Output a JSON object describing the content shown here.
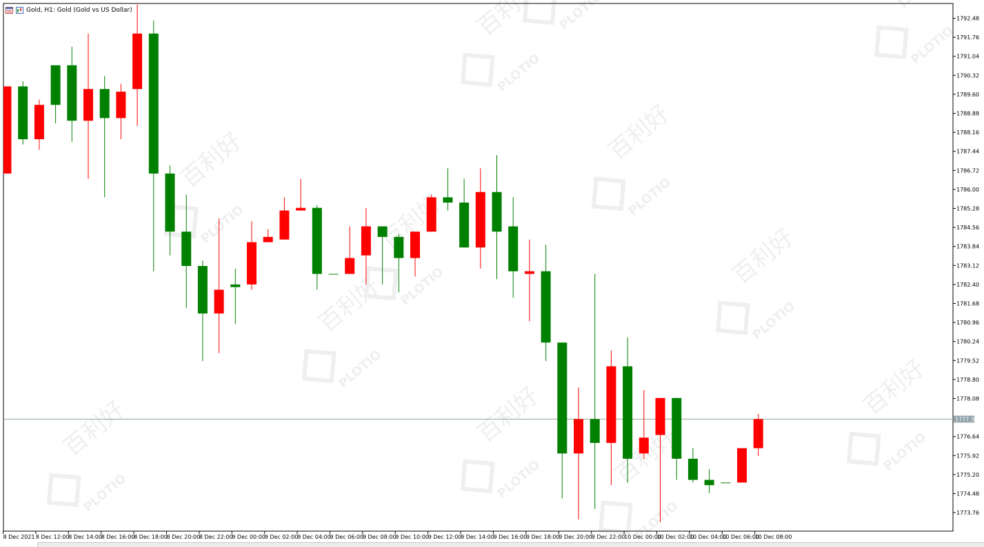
{
  "window": {
    "title": "Gold, H1:  Gold (Gold vs US Dollar)"
  },
  "colors": {
    "bull": "#008000",
    "bear": "#ff0000",
    "axis": "#000000",
    "price_line": "#8fa98f",
    "price_tag_bg": "#8fa0a8",
    "watermark": "#efefef"
  },
  "icons": [
    "chart-window-icon",
    "chart-type-icon"
  ],
  "watermark": {
    "logo_text": "PLOTIO",
    "cn_text": "百利好"
  },
  "chart_data": {
    "type": "candlestick",
    "symbol": "Gold",
    "timeframe": "H1",
    "ylim": [
      1773.2,
      1793.1
    ],
    "y_ticks": [
      "1792.48",
      "1791.76",
      "1791.04",
      "1790.32",
      "1789.60",
      "1788.88",
      "1788.16",
      "1787.44",
      "1786.72",
      "1786.00",
      "1785.28",
      "1784.56",
      "1783.84",
      "1783.12",
      "1782.40",
      "1781.68",
      "1780.96",
      "1780.24",
      "1779.52",
      "1778.80",
      "1778.08",
      "1776.64",
      "1775.92",
      "1775.20",
      "1774.48",
      "1773.76"
    ],
    "current_price": "1777.30",
    "x_labels": [
      {
        "i": 0,
        "label": "8 Dec 2021"
      },
      {
        "i": 2,
        "label": "8 Dec 12:00"
      },
      {
        "i": 4,
        "label": "8 Dec 14:00"
      },
      {
        "i": 6,
        "label": "8 Dec 16:00"
      },
      {
        "i": 8,
        "label": "8 Dec 18:00"
      },
      {
        "i": 10,
        "label": "8 Dec 20:00"
      },
      {
        "i": 12,
        "label": "8 Dec 22:00"
      },
      {
        "i": 14,
        "label": "9 Dec 00:00"
      },
      {
        "i": 16,
        "label": "9 Dec 02:00"
      },
      {
        "i": 18,
        "label": "9 Dec 04:00"
      },
      {
        "i": 20,
        "label": "9 Dec 06:00"
      },
      {
        "i": 22,
        "label": "9 Dec 08:00"
      },
      {
        "i": 24,
        "label": "9 Dec 10:00"
      },
      {
        "i": 26,
        "label": "9 Dec 12:00"
      },
      {
        "i": 28,
        "label": "9 Dec 14:00"
      },
      {
        "i": 30,
        "label": "9 Dec 16:00"
      },
      {
        "i": 32,
        "label": "9 Dec 18:00"
      },
      {
        "i": 34,
        "label": "9 Dec 20:00"
      },
      {
        "i": 36,
        "label": "9 Dec 22:00"
      },
      {
        "i": 38,
        "label": "10 Dec 00:00"
      },
      {
        "i": 40,
        "label": "10 Dec 02:00"
      },
      {
        "i": 42,
        "label": "10 Dec 04:00"
      },
      {
        "i": 44,
        "label": "10 Dec 06:00"
      },
      {
        "i": 46,
        "label": "10 Dec 08:00"
      }
    ],
    "candles": [
      {
        "o": 1789.9,
        "h": 1789.9,
        "l": 1786.6,
        "c": 1786.6
      },
      {
        "o": 1787.9,
        "h": 1790.1,
        "l": 1787.7,
        "c": 1789.9
      },
      {
        "o": 1789.2,
        "h": 1789.4,
        "l": 1787.5,
        "c": 1787.9
      },
      {
        "o": 1789.2,
        "h": 1790.7,
        "l": 1788.5,
        "c": 1790.7
      },
      {
        "o": 1788.6,
        "h": 1791.4,
        "l": 1787.8,
        "c": 1790.7
      },
      {
        "o": 1789.8,
        "h": 1791.9,
        "l": 1786.4,
        "c": 1788.6
      },
      {
        "o": 1788.7,
        "h": 1790.3,
        "l": 1785.7,
        "c": 1789.8
      },
      {
        "o": 1789.7,
        "h": 1790.0,
        "l": 1787.9,
        "c": 1788.7
      },
      {
        "o": 1791.9,
        "h": 1793.0,
        "l": 1788.4,
        "c": 1789.8
      },
      {
        "o": 1786.6,
        "h": 1792.4,
        "l": 1782.9,
        "c": 1791.9
      },
      {
        "o": 1784.4,
        "h": 1786.9,
        "l": 1783.5,
        "c": 1786.6
      },
      {
        "o": 1783.1,
        "h": 1785.8,
        "l": 1781.5,
        "c": 1784.4
      },
      {
        "o": 1781.3,
        "h": 1783.3,
        "l": 1779.5,
        "c": 1783.1
      },
      {
        "o": 1782.2,
        "h": 1784.9,
        "l": 1779.8,
        "c": 1781.3
      },
      {
        "o": 1782.3,
        "h": 1783.0,
        "l": 1780.9,
        "c": 1782.4
      },
      {
        "o": 1784.0,
        "h": 1784.8,
        "l": 1782.2,
        "c": 1782.4
      },
      {
        "o": 1784.2,
        "h": 1784.5,
        "l": 1784.0,
        "c": 1784.0
      },
      {
        "o": 1785.2,
        "h": 1785.7,
        "l": 1784.1,
        "c": 1784.1
      },
      {
        "o": 1785.3,
        "h": 1786.4,
        "l": 1785.2,
        "c": 1785.2
      },
      {
        "o": 1782.8,
        "h": 1785.4,
        "l": 1782.2,
        "c": 1785.3
      },
      {
        "o": 1782.8,
        "h": 1782.8,
        "l": 1782.8,
        "c": 1782.8
      },
      {
        "o": 1783.4,
        "h": 1784.6,
        "l": 1782.8,
        "c": 1782.8
      },
      {
        "o": 1784.6,
        "h": 1785.3,
        "l": 1782.4,
        "c": 1783.5
      },
      {
        "o": 1784.2,
        "h": 1784.6,
        "l": 1782.4,
        "c": 1784.6
      },
      {
        "o": 1783.4,
        "h": 1784.3,
        "l": 1782.1,
        "c": 1784.2
      },
      {
        "o": 1784.4,
        "h": 1784.4,
        "l": 1782.7,
        "c": 1783.4
      },
      {
        "o": 1785.7,
        "h": 1785.8,
        "l": 1784.4,
        "c": 1784.4
      },
      {
        "o": 1785.5,
        "h": 1786.8,
        "l": 1785.2,
        "c": 1785.7
      },
      {
        "o": 1783.8,
        "h": 1786.4,
        "l": 1783.8,
        "c": 1785.5
      },
      {
        "o": 1785.9,
        "h": 1786.8,
        "l": 1783.0,
        "c": 1783.8
      },
      {
        "o": 1784.4,
        "h": 1787.3,
        "l": 1782.6,
        "c": 1785.9
      },
      {
        "o": 1782.9,
        "h": 1785.7,
        "l": 1781.9,
        "c": 1784.6
      },
      {
        "o": 1782.9,
        "h": 1784.1,
        "l": 1781.0,
        "c": 1782.8
      },
      {
        "o": 1780.2,
        "h": 1783.9,
        "l": 1779.5,
        "c": 1782.9
      },
      {
        "o": 1776.0,
        "h": 1780.2,
        "l": 1774.3,
        "c": 1780.2
      },
      {
        "o": 1777.3,
        "h": 1778.5,
        "l": 1773.5,
        "c": 1776.0
      },
      {
        "o": 1776.4,
        "h": 1782.8,
        "l": 1773.9,
        "c": 1777.3
      },
      {
        "o": 1779.3,
        "h": 1779.9,
        "l": 1774.8,
        "c": 1776.4
      },
      {
        "o": 1775.8,
        "h": 1780.4,
        "l": 1774.9,
        "c": 1779.3
      },
      {
        "o": 1776.6,
        "h": 1778.4,
        "l": 1775.8,
        "c": 1776.0
      },
      {
        "o": 1778.1,
        "h": 1778.1,
        "l": 1773.4,
        "c": 1776.7
      },
      {
        "o": 1775.8,
        "h": 1778.1,
        "l": 1775.0,
        "c": 1778.1
      },
      {
        "o": 1775.0,
        "h": 1776.2,
        "l": 1774.9,
        "c": 1775.8
      },
      {
        "o": 1774.8,
        "h": 1775.4,
        "l": 1774.5,
        "c": 1775.0
      },
      {
        "o": 1774.9,
        "h": 1774.9,
        "l": 1774.9,
        "c": 1774.9
      },
      {
        "o": 1776.2,
        "h": 1776.2,
        "l": 1774.9,
        "c": 1774.9
      },
      {
        "o": 1777.3,
        "h": 1777.5,
        "l": 1775.9,
        "c": 1776.2
      }
    ]
  }
}
